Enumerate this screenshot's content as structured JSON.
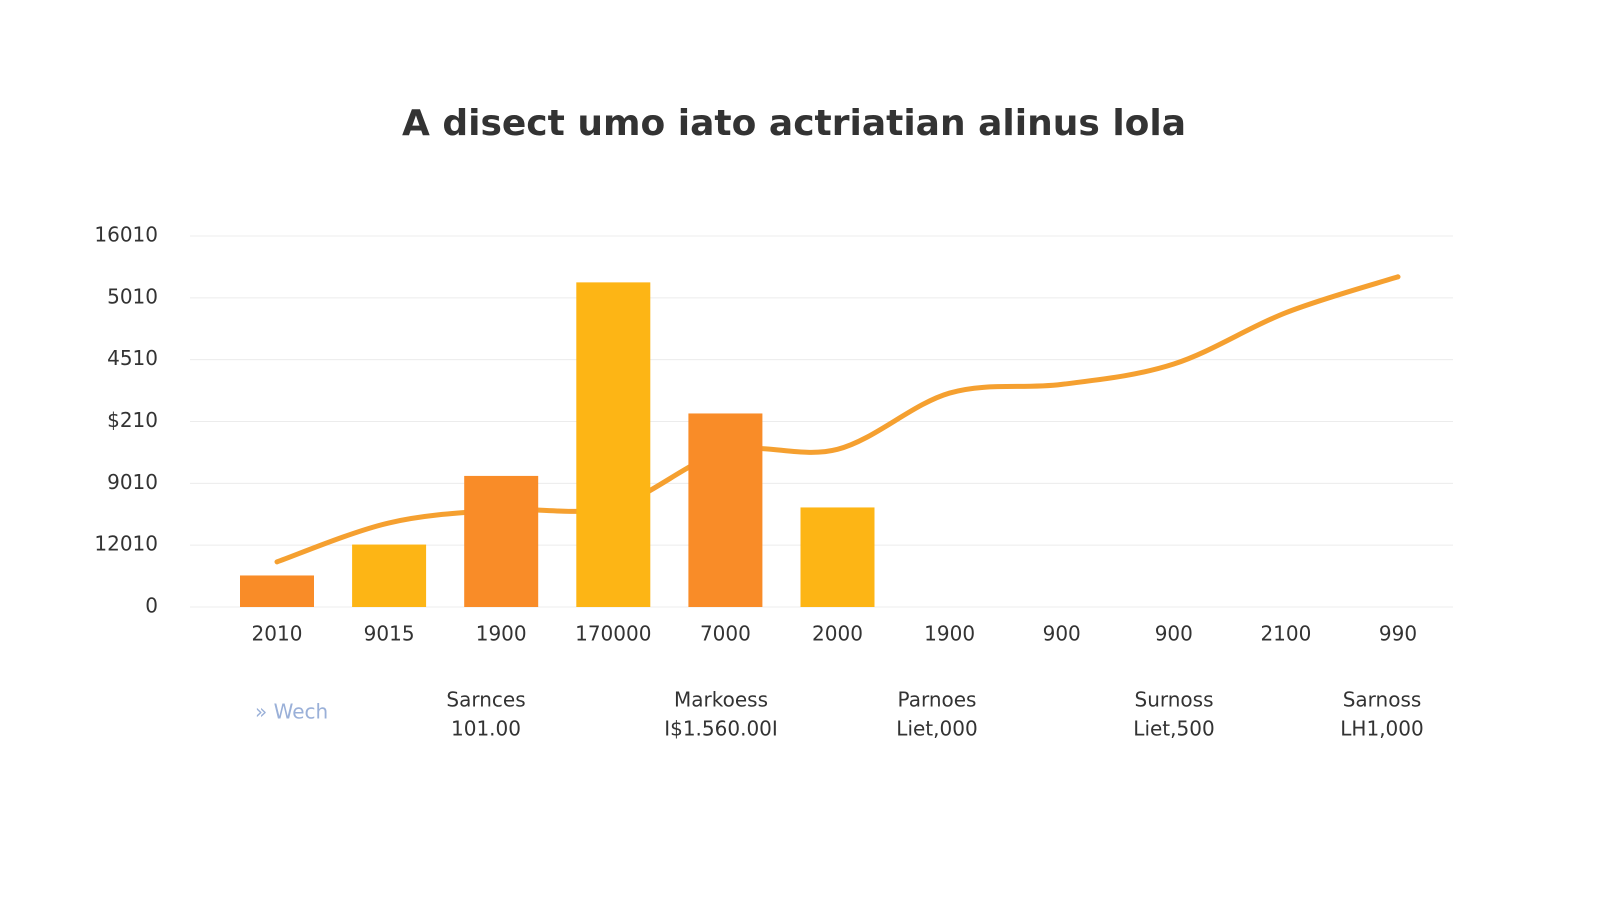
{
  "chart_data": {
    "type": "bar",
    "title": "A disect umo iato actriatian alinus lola",
    "categories": [
      "2010",
      "9015",
      "1900",
      "170000",
      "7000",
      "2000",
      "1900",
      "900",
      "900",
      "2100",
      "990"
    ],
    "ylim": [
      0,
      6
    ],
    "yticks": [
      0,
      {
        "value": 1,
        "label": "12010"
      },
      {
        "value": 2,
        "label": "9010"
      },
      {
        "value": 3,
        "label": "$210"
      },
      {
        "value": 4,
        "label": "4510"
      },
      {
        "value": 5,
        "label": "5010"
      },
      {
        "value": 6,
        "label": "16010"
      }
    ],
    "grid": true,
    "series": [
      {
        "type": "line",
        "color": "#f5a030",
        "values": [
          0.73,
          1.36,
          1.57,
          1.62,
          2.52,
          2.55,
          3.46,
          3.6,
          3.93,
          4.76,
          5.34
        ]
      },
      {
        "type": "bar",
        "colors": [
          "#f98c28",
          "#fdb515",
          "#f98c28",
          "#fdb515",
          "#f98c28",
          "#fdb515"
        ],
        "values": [
          0.51,
          1.01,
          2.12,
          5.25,
          3.13,
          1.61,
          null,
          null,
          null,
          null,
          null
        ]
      }
    ]
  },
  "footer": {
    "link": "» Wech",
    "items": [
      {
        "label": "Sarnces",
        "value": "101.00"
      },
      {
        "label": "Markoess",
        "value": "I$1.560.00I"
      },
      {
        "label": "Parnoes",
        "value": "Liet,000"
      },
      {
        "label": "Surnoss",
        "value": "Liet,500"
      },
      {
        "label": "Sarnoss",
        "value": "LH1,000"
      }
    ]
  }
}
